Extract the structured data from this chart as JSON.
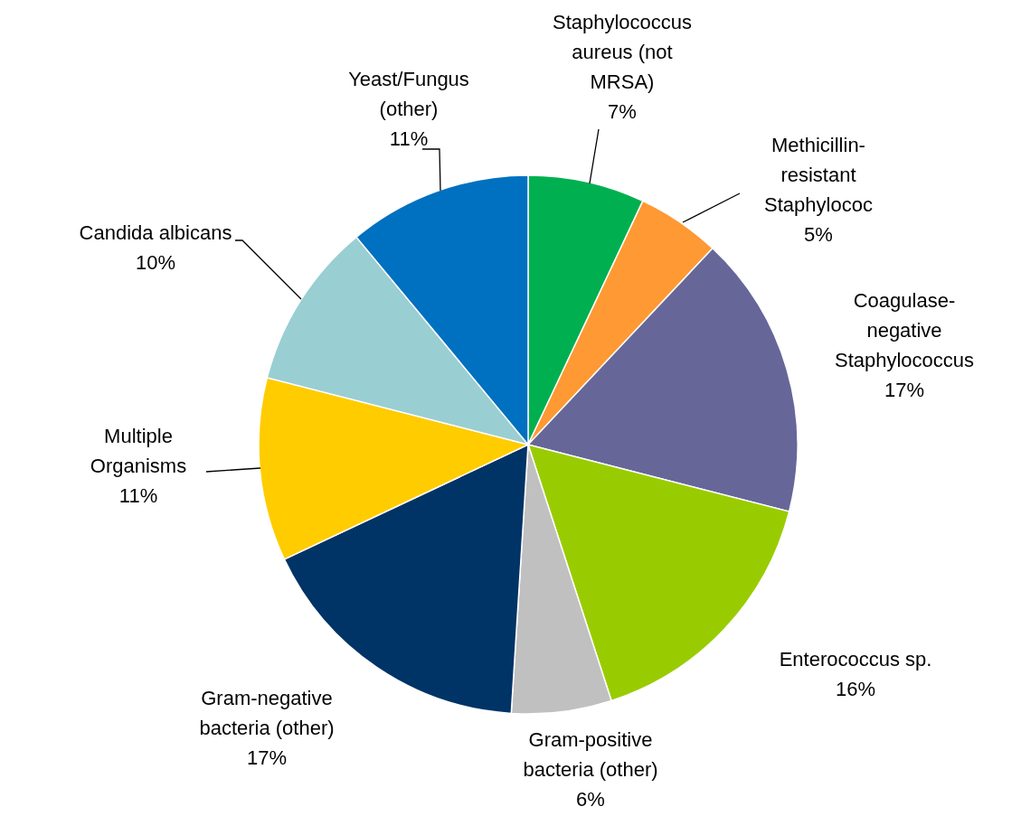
{
  "chart_data": {
    "type": "pie",
    "categories": [
      "Staphylococcus aureus (not MRSA)",
      "Methicillin-resistant Staphylococ",
      "Coagulase-negative Staphylococcus",
      "Enterococcus sp.",
      "Gram-positive bacteria (other)",
      "Gram-negative bacteria (other)",
      "Multiple Organisms",
      "Candida albicans",
      "Yeast/Fungus (other)"
    ],
    "values": [
      7,
      5,
      17,
      16,
      6,
      17,
      11,
      10,
      11
    ],
    "value_labels": [
      "7%",
      "5%",
      "17%",
      "16%",
      "6%",
      "17%",
      "11%",
      "10%",
      "11%"
    ],
    "colors": [
      "#00b050",
      "#ff9933",
      "#666699",
      "#99cc00",
      "#c0c0c0",
      "#003366",
      "#ffcc00",
      "#99ced3",
      "#0070c0"
    ]
  }
}
